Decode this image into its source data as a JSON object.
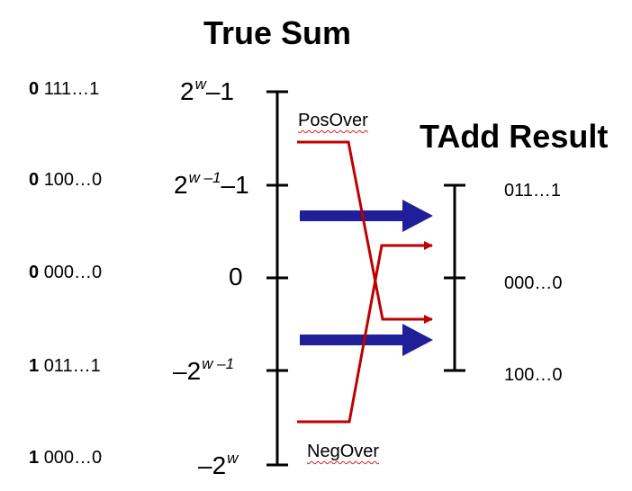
{
  "titles": {
    "true_sum": "True Sum",
    "tadd_result": "TAdd Result"
  },
  "bit_patterns": [
    {
      "sign": "0",
      "rest": "111…1"
    },
    {
      "sign": "0",
      "rest": "100…0"
    },
    {
      "sign": "0",
      "rest": "000…0"
    },
    {
      "sign": "1",
      "rest": "011…1"
    },
    {
      "sign": "1",
      "rest": "000…0"
    }
  ],
  "true_sum_axis": [
    {
      "base": "2",
      "exp": "w",
      "suffix": "–1"
    },
    {
      "base": "2",
      "exp": "w –1",
      "suffix": "–1"
    },
    {
      "base": "0",
      "exp": "",
      "suffix": ""
    },
    {
      "base": "–2",
      "exp": "w –1",
      "suffix": ""
    },
    {
      "base": "–2",
      "exp": "w",
      "suffix": ""
    }
  ],
  "result_axis": [
    "011…1",
    "000…0",
    "100…0"
  ],
  "overflow": {
    "positive": "PosOver",
    "negative": "NegOver"
  },
  "colors": {
    "axis": "#000000",
    "overflow_line": "#c00000",
    "mapping_arrow": "#1f1f99"
  }
}
